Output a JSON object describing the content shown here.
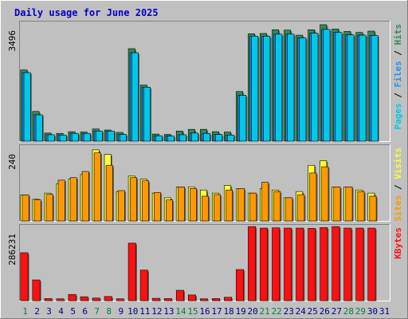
{
  "chart_data": {
    "type": "bar",
    "title": "Daily usage for June 2025",
    "colors": {
      "background": "#c0c0c0",
      "plot_bg": "#c0c0c0",
      "hits": "#2e8b57",
      "files": "#1e90ff",
      "pages": "#00c8e8",
      "visits": "#ffff33",
      "sites": "#ff9900",
      "kbytes": "#ff1010",
      "title": "#0000cc",
      "weekend_label": "#008040",
      "weekday_label": "#000080"
    },
    "categories": [
      "1",
      "2",
      "3",
      "4",
      "5",
      "6",
      "7",
      "8",
      "9",
      "10",
      "11",
      "12",
      "13",
      "14",
      "15",
      "16",
      "17",
      "18",
      "19",
      "20",
      "21",
      "22",
      "23",
      "24",
      "25",
      "26",
      "27",
      "28",
      "29",
      "30",
      "31"
    ],
    "weekend_days": [
      "1",
      "7",
      "8",
      "14",
      "15",
      "21",
      "22",
      "28",
      "29"
    ],
    "panels": [
      {
        "id": "hits_files_pages",
        "ymax_label": "3496",
        "ymax": 3496,
        "legend": [
          {
            "text": "Pages",
            "color": "#00c8e8"
          },
          {
            "text": " / ",
            "color": "#000000"
          },
          {
            "text": "Files",
            "color": "#1e90ff"
          },
          {
            "text": " / ",
            "color": "#000000"
          },
          {
            "text": "Hits",
            "color": "#2e8b57"
          }
        ],
        "series": [
          {
            "name": "Hits",
            "color": "#2e8b57",
            "values": [
              2110,
              880,
              240,
              230,
              280,
              270,
              360,
              330,
              260,
              2740,
              1660,
              210,
              200,
              300,
              350,
              350,
              280,
              270,
              1470,
              3180,
              3190,
              3300,
              3290,
              3140,
              3300,
              3450,
              3320,
              3250,
              3220,
              3260,
              0
            ]
          },
          {
            "name": "Files",
            "color": "#1e90ff",
            "values": [
              2030,
              780,
              190,
              180,
              230,
              230,
              300,
              300,
              200,
              2620,
              1600,
              160,
              150,
              190,
              240,
              230,
              200,
              180,
              1360,
              3110,
              3110,
              3170,
              3170,
              3060,
              3200,
              3310,
              3220,
              3150,
              3140,
              3130,
              0
            ]
          },
          {
            "name": "Pages",
            "color": "#00c8e8",
            "values": [
              2030,
              780,
              190,
              180,
              230,
              230,
              300,
              300,
              200,
              2620,
              1600,
              160,
              150,
              190,
              240,
              230,
              200,
              180,
              1360,
              3110,
              3110,
              3170,
              3170,
              3060,
              3200,
              3310,
              3220,
              3150,
              3140,
              3130,
              0
            ]
          }
        ]
      },
      {
        "id": "visits_sites",
        "ymax_label": "240",
        "ymax": 240,
        "legend": [
          {
            "text": "Sites",
            "color": "#ff9900"
          },
          {
            "text": " / ",
            "color": "#000000"
          },
          {
            "text": "Visits",
            "color": "#ffff33"
          }
        ],
        "series": [
          {
            "name": "Visits",
            "color": "#ffff33",
            "values": [
              84,
              70,
              90,
              120,
              135,
              150,
              230,
              215,
              95,
              145,
              135,
              90,
              75,
              110,
              110,
              100,
              90,
              115,
              105,
              90,
              105,
              100,
              75,
              95,
              180,
              195,
              110,
              110,
              100,
              90,
              0
            ]
          },
          {
            "name": "Sites",
            "color": "#ff9900",
            "values": [
              84,
              68,
              86,
              132,
              140,
              160,
              220,
              180,
              98,
              140,
              130,
              92,
              68,
              110,
              105,
              80,
              85,
              100,
              105,
              90,
              125,
              95,
              75,
              85,
              155,
              175,
              110,
              110,
              95,
              80,
              0
            ]
          }
        ]
      },
      {
        "id": "kbytes",
        "ymax_label": "286231",
        "ymax": 286231,
        "legend": [
          {
            "text": "KBytes",
            "color": "#ff1010"
          }
        ],
        "series": [
          {
            "name": "KBytes",
            "color": "#ff1010",
            "values": [
              185000,
              80000,
              8000,
              7000,
              24000,
              15000,
              10000,
              16000,
              7000,
              222000,
              118000,
              9000,
              8000,
              40000,
              22000,
              7000,
              8000,
              13000,
              120000,
              286000,
              280000,
              281000,
              280000,
              280000,
              279000,
              282000,
              286000,
              280000,
              280000,
              280000,
              0
            ]
          }
        ]
      }
    ]
  }
}
